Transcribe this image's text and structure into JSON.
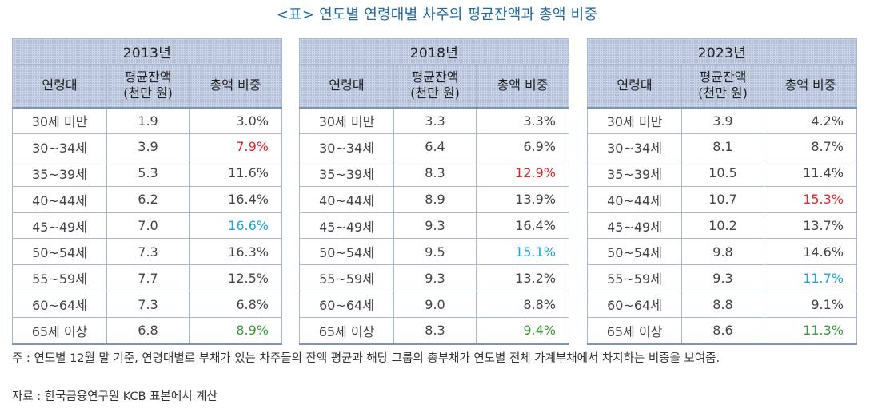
{
  "title": "<표> 연도별 연령대별 차주의 평균잔액과 총액 비중",
  "headers": {
    "age": "연령대",
    "avg_line1": "평균잔액",
    "avg_line2": "(천만 원)",
    "share": "총액 비중"
  },
  "colors": {
    "red": "#e3242b",
    "blue": "#1aa3dc",
    "green": "#3a9a36"
  },
  "tables": [
    {
      "year": "2013년",
      "rows": [
        {
          "age": "30세 미만",
          "avg": "1.9",
          "share": "3.0%",
          "hl": ""
        },
        {
          "age": "30~34세",
          "avg": "3.9",
          "share": "7.9%",
          "hl": "red"
        },
        {
          "age": "35~39세",
          "avg": "5.3",
          "share": "11.6%",
          "hl": ""
        },
        {
          "age": "40~44세",
          "avg": "6.2",
          "share": "16.4%",
          "hl": ""
        },
        {
          "age": "45~49세",
          "avg": "7.0",
          "share": "16.6%",
          "hl": "blue"
        },
        {
          "age": "50~54세",
          "avg": "7.3",
          "share": "16.3%",
          "hl": ""
        },
        {
          "age": "55~59세",
          "avg": "7.7",
          "share": "12.5%",
          "hl": ""
        },
        {
          "age": "60~64세",
          "avg": "7.3",
          "share": "6.8%",
          "hl": ""
        },
        {
          "age": "65세 이상",
          "avg": "6.8",
          "share": "8.9%",
          "hl": "green"
        }
      ]
    },
    {
      "year": "2018년",
      "rows": [
        {
          "age": "30세 미만",
          "avg": "3.3",
          "share": "3.3%",
          "hl": ""
        },
        {
          "age": "30~34세",
          "avg": "6.4",
          "share": "6.9%",
          "hl": ""
        },
        {
          "age": "35~39세",
          "avg": "8.3",
          "share": "12.9%",
          "hl": "red"
        },
        {
          "age": "40~44세",
          "avg": "8.9",
          "share": "13.9%",
          "hl": ""
        },
        {
          "age": "45~49세",
          "avg": "9.3",
          "share": "16.4%",
          "hl": ""
        },
        {
          "age": "50~54세",
          "avg": "9.5",
          "share": "15.1%",
          "hl": "blue"
        },
        {
          "age": "55~59세",
          "avg": "9.3",
          "share": "13.2%",
          "hl": ""
        },
        {
          "age": "60~64세",
          "avg": "9.0",
          "share": "8.8%",
          "hl": ""
        },
        {
          "age": "65세 이상",
          "avg": "8.3",
          "share": "9.4%",
          "hl": "green"
        }
      ]
    },
    {
      "year": "2023년",
      "rows": [
        {
          "age": "30세 미만",
          "avg": "3.9",
          "share": "4.2%",
          "hl": ""
        },
        {
          "age": "30~34세",
          "avg": "8.1",
          "share": "8.7%",
          "hl": ""
        },
        {
          "age": "35~39세",
          "avg": "10.5",
          "share": "11.4%",
          "hl": ""
        },
        {
          "age": "40~44세",
          "avg": "10.7",
          "share": "15.3%",
          "hl": "red"
        },
        {
          "age": "45~49세",
          "avg": "10.2",
          "share": "13.7%",
          "hl": ""
        },
        {
          "age": "50~54세",
          "avg": "9.8",
          "share": "14.6%",
          "hl": ""
        },
        {
          "age": "55~59세",
          "avg": "9.3",
          "share": "11.7%",
          "hl": "blue"
        },
        {
          "age": "60~64세",
          "avg": "8.8",
          "share": "9.1%",
          "hl": ""
        },
        {
          "age": "65세 이상",
          "avg": "8.6",
          "share": "11.3%",
          "hl": "green"
        }
      ]
    }
  ],
  "note": "주 : 연도별 12월 말 기준, 연령대별로 부채가 있는 차주들의 잔액 평균과 해당 그룹의 총부채가 연도별 전체 가계부채에서 차지하는 비중을 보여줌.",
  "source": "자료 : 한국금융연구원 KCB 표본에서 계산"
}
